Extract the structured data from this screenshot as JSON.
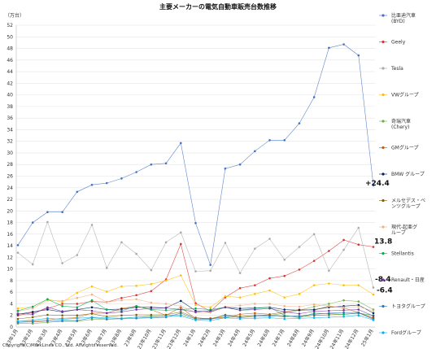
{
  "chart_data": {
    "type": "line",
    "title": "主要メーカーの電気自動車販売台数推移",
    "ylabel": "（万台）",
    "ylim": [
      0,
      52
    ],
    "yticks": [
      0,
      2,
      4,
      6,
      8,
      10,
      12,
      14,
      16,
      18,
      20,
      22,
      24,
      26,
      28,
      30,
      32,
      34,
      36,
      38,
      40,
      42,
      44,
      46,
      48,
      50,
      52
    ],
    "grid": true,
    "legend_position": "right",
    "copyright": "Copyright(C)MarkLines CO., Ltd. All rights reserved.",
    "x": [
      "23年1月",
      "23年2月",
      "23年3月",
      "23年4月",
      "23年5月",
      "23年6月",
      "23年7月",
      "23年8月",
      "23年9月",
      "23年10月",
      "23年11月",
      "23年12月",
      "24年1月",
      "24年2月",
      "24年3月",
      "24年4月",
      "24年5月",
      "24年6月",
      "24年7月",
      "24年8月",
      "24年9月",
      "24年10月",
      "24年11月",
      "24年12月",
      "25年1月"
    ],
    "series": [
      {
        "name": "比亜迪汽車",
        "name2": "(BYD)",
        "color": "#4472c4",
        "values": [
          14.1,
          18.0,
          19.8,
          19.8,
          23.3,
          24.5,
          24.8,
          25.6,
          26.7,
          28.0,
          28.2,
          31.7,
          17.9,
          10.7,
          27.3,
          28.0,
          30.3,
          32.2,
          32.2,
          35.1,
          39.6,
          48.1,
          48.7,
          46.8,
          24.4
        ]
      },
      {
        "name": "Geely",
        "color": "#e03030",
        "values": [
          2.0,
          2.5,
          3.2,
          4.0,
          4.0,
          4.4,
          4.3,
          5.0,
          5.5,
          6.2,
          8.2,
          14.3,
          4.1,
          2.7,
          5.1,
          6.7,
          7.2,
          8.4,
          8.8,
          9.9,
          11.4,
          13.1,
          15.0,
          14.2,
          13.8
        ]
      },
      {
        "name": "Tesla",
        "color": "#aaaaaa",
        "values": [
          12.8,
          10.8,
          18.1,
          11.0,
          12.4,
          17.6,
          10.2,
          14.6,
          12.6,
          9.8,
          14.6,
          16.3,
          9.6,
          9.7,
          14.5,
          9.3,
          13.5,
          15.2,
          11.6,
          13.8,
          16.0,
          9.7,
          13.3,
          17.1,
          6.8
        ]
      },
      {
        "name": "VWグループ",
        "color": "#ffc000",
        "values": [
          3.2,
          3.5,
          4.8,
          4.3,
          5.9,
          7.0,
          6.1,
          7.0,
          7.1,
          7.4,
          8.0,
          8.9,
          3.8,
          3.4,
          5.3,
          5.1,
          5.7,
          6.3,
          5.1,
          5.7,
          7.2,
          7.5,
          7.2,
          7.2,
          5.6
        ]
      },
      {
        "name": "奇瑞汽車",
        "name2": "(Chery)",
        "color": "#70ad47",
        "values": [
          0.6,
          0.6,
          0.8,
          1.0,
          1.0,
          1.3,
          1.3,
          1.5,
          1.7,
          1.9,
          2.0,
          2.1,
          1.4,
          1.4,
          1.6,
          1.8,
          2.0,
          2.0,
          2.4,
          2.9,
          3.5,
          4.0,
          4.6,
          4.4,
          3.0
        ]
      },
      {
        "name": "GMグループ",
        "color": "#c55a11",
        "values": [
          1.0,
          1.0,
          1.2,
          1.5,
          1.6,
          2.4,
          2.4,
          3.2,
          3.6,
          3.0,
          2.0,
          3.4,
          1.4,
          1.5,
          1.7,
          2.2,
          2.4,
          2.2,
          2.6,
          3.0,
          2.9,
          3.6,
          3.3,
          2.5,
          1.5
        ]
      },
      {
        "name": "BMW グループ",
        "color": "#002060",
        "values": [
          2.2,
          2.6,
          3.0,
          2.6,
          3.0,
          3.4,
          3.0,
          3.1,
          3.4,
          3.4,
          3.3,
          4.5,
          2.8,
          2.6,
          3.4,
          3.2,
          3.3,
          3.4,
          3.0,
          2.9,
          3.0,
          3.4,
          3.6,
          3.8,
          2.4
        ]
      },
      {
        "name": "メルセデス・ベ",
        "name2": "ンツグループ",
        "color": "#7f6000",
        "values": [
          1.4,
          1.7,
          2.1,
          2.0,
          2.0,
          2.3,
          1.8,
          2.0,
          2.1,
          2.1,
          2.1,
          2.6,
          1.6,
          1.4,
          2.1,
          1.8,
          2.0,
          2.1,
          1.9,
          1.8,
          2.0,
          2.1,
          2.2,
          2.4,
          1.6
        ]
      },
      {
        "name": "現代-起亜グ",
        "name2": "ループ",
        "color": "#f4b183",
        "values": [
          2.7,
          3.2,
          4.6,
          4.5,
          5.0,
          5.6,
          4.3,
          4.6,
          4.8,
          4.2,
          4.0,
          3.6,
          2.5,
          2.5,
          3.5,
          3.7,
          4.0,
          4.0,
          3.6,
          3.5,
          3.9,
          3.6,
          3.4,
          3.5,
          2.8
        ]
      },
      {
        "name": "Stellantis",
        "color": "#00b050",
        "values": [
          2.8,
          3.5,
          4.8,
          3.6,
          3.4,
          4.6,
          3.0,
          2.8,
          3.6,
          3.0,
          2.9,
          3.0,
          3.2,
          3.0,
          3.4,
          2.9,
          3.2,
          3.4,
          2.0,
          1.6,
          2.4,
          2.3,
          2.2,
          2.4,
          2.0
        ]
      },
      {
        "name": "Renault・日産",
        "color": "#7030a0",
        "values": [
          2.3,
          2.2,
          3.4,
          2.7,
          3.0,
          2.8,
          2.4,
          2.6,
          3.0,
          3.2,
          3.3,
          3.0,
          2.6,
          2.8,
          3.4,
          2.9,
          3.0,
          3.2,
          2.6,
          2.3,
          2.7,
          2.8,
          2.9,
          3.0,
          1.9
        ]
      },
      {
        "name": "トヨタグループ",
        "color": "#2e75b6",
        "values": [
          0.8,
          0.9,
          1.0,
          1.1,
          1.1,
          1.6,
          1.4,
          1.4,
          1.5,
          1.6,
          1.7,
          2.4,
          1.4,
          1.3,
          2.0,
          1.6,
          1.8,
          1.9,
          1.8,
          1.9,
          2.2,
          2.4,
          2.5,
          2.5,
          1.3
        ]
      },
      {
        "name": "Fordグループ",
        "color": "#00b0f0",
        "values": [
          1.0,
          1.2,
          1.5,
          1.3,
          1.5,
          1.7,
          1.6,
          1.5,
          1.7,
          1.7,
          1.8,
          1.9,
          1.2,
          1.1,
          1.6,
          1.4,
          1.5,
          1.6,
          1.4,
          1.5,
          1.6,
          1.7,
          1.8,
          2.0,
          1.2
        ]
      }
    ],
    "annotations": [
      {
        "text": "+24.4",
        "series": 0
      },
      {
        "text": "13.8",
        "series": 1
      },
      {
        "text": "-8.4",
        "series": 3
      },
      {
        "text": "-6.4",
        "series": 2
      }
    ]
  }
}
